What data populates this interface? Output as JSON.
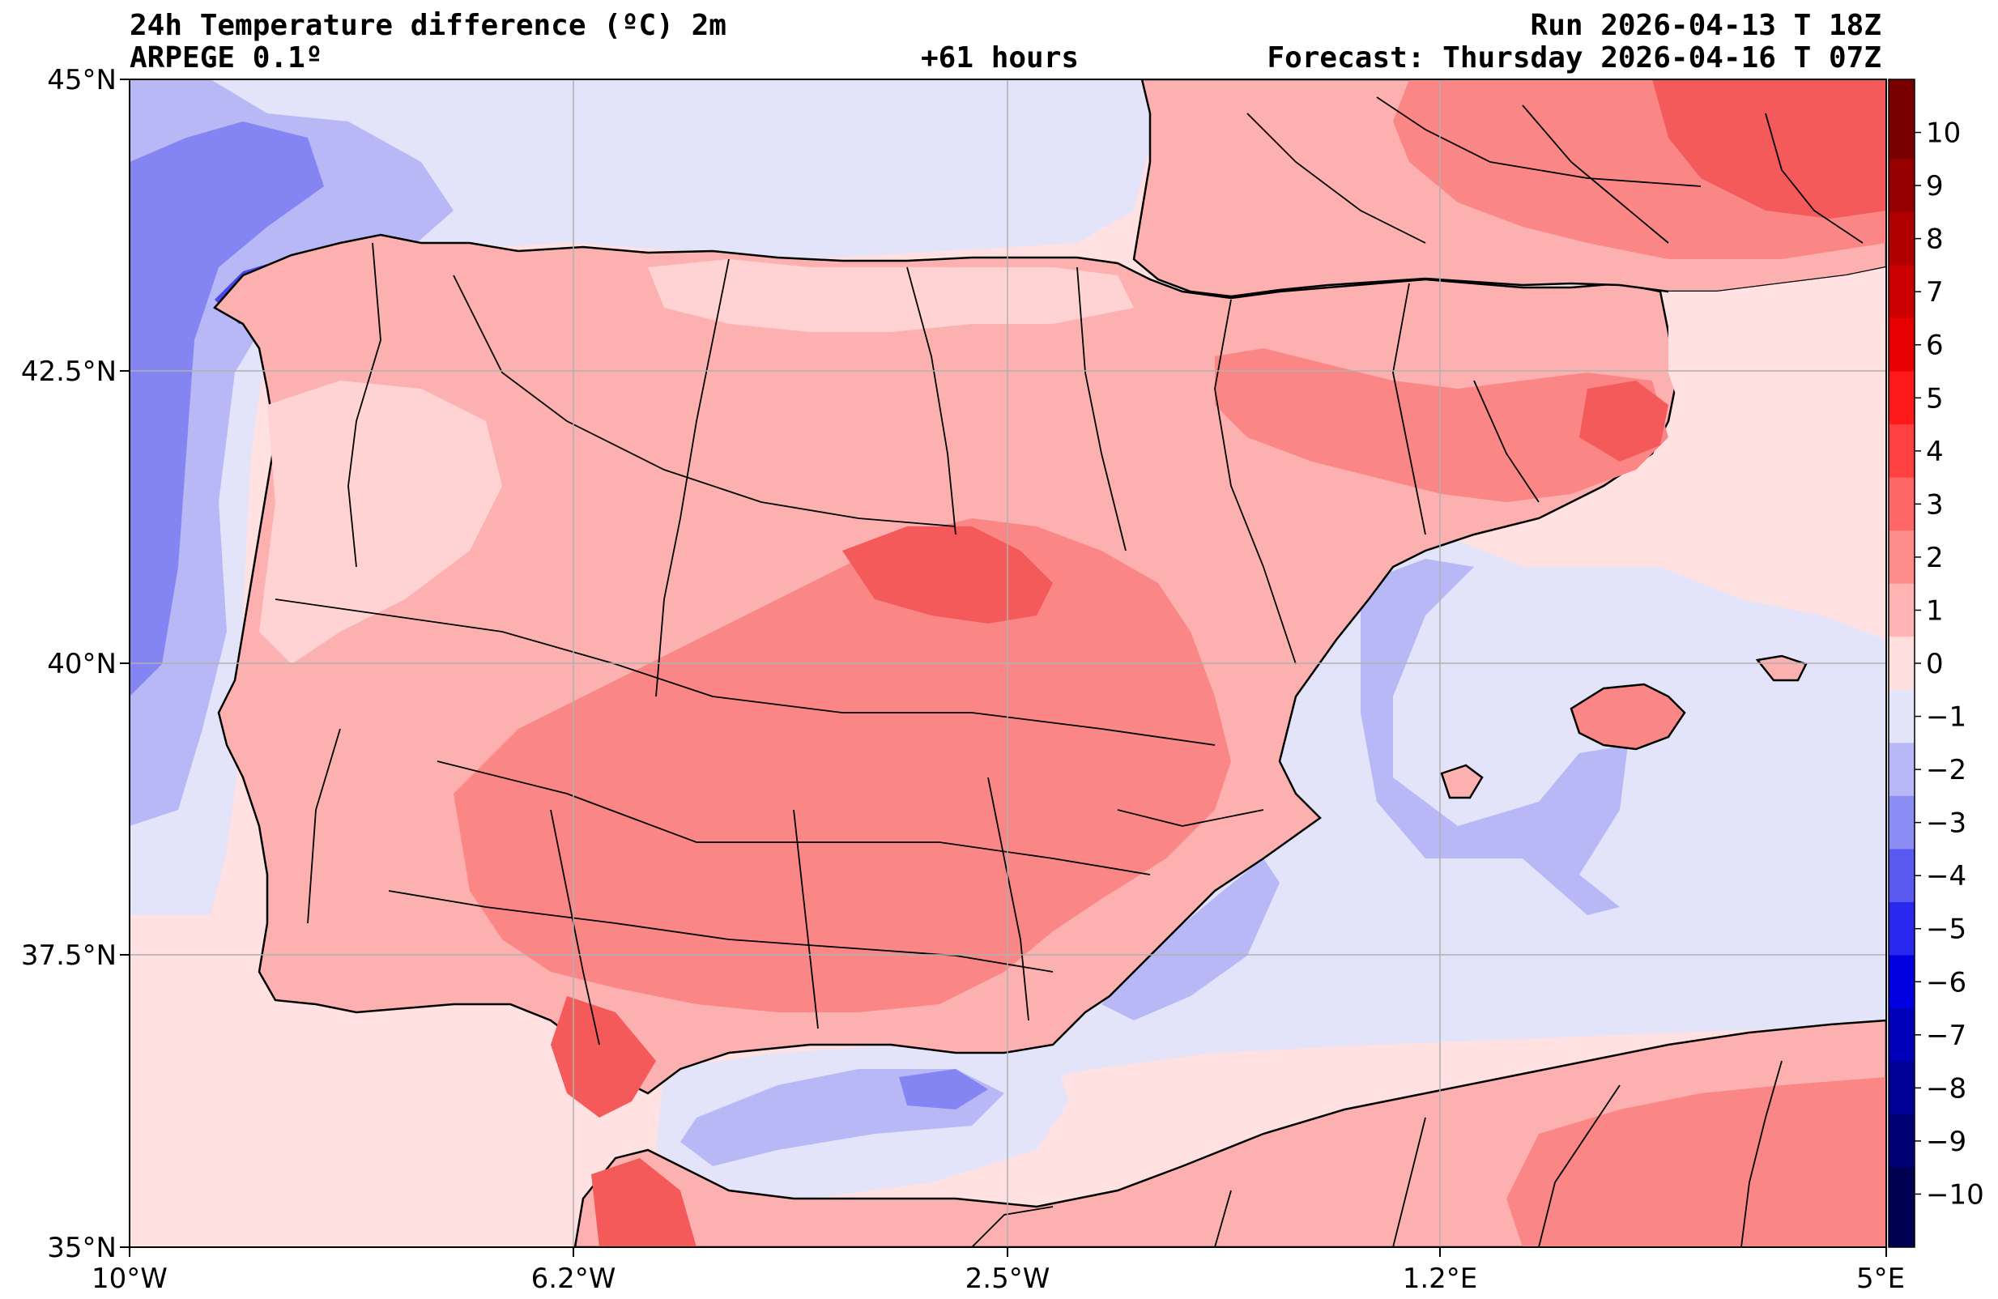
{
  "header": {
    "title": "24h Temperature difference (ºC) 2m",
    "model": "ARPEGE 0.1º",
    "lead_time": "+61 hours",
    "run": "Run 2026-04-13 T 18Z",
    "forecast": "Forecast: Thursday 2026-04-16 T 07Z"
  },
  "axes": {
    "lat_labels": [
      "45°N",
      "42.5°N",
      "40°N",
      "37.5°N",
      "35°N"
    ],
    "lon_labels": [
      "10°W",
      "6.2°W",
      "2.5°W",
      "1.2°E",
      "5°E"
    ]
  },
  "colorbar": {
    "levels": [
      "10",
      "9",
      "8",
      "7",
      "6",
      "5",
      "4",
      "3",
      "2",
      "1",
      "0",
      "−1",
      "−2",
      "−3",
      "−4",
      "−5",
      "−6",
      "−7",
      "−8",
      "−9",
      "−10"
    ],
    "colors": [
      "#7a0000",
      "#960000",
      "#b00000",
      "#cc0000",
      "#e60000",
      "#ff1a1a",
      "#ff4040",
      "#ff6666",
      "#fd8d8d",
      "#ffb3b3",
      "#ffdede",
      "#e4e4fb",
      "#b8b8f8",
      "#8c8cf5",
      "#5a5af2",
      "#2828ef",
      "#0000e0",
      "#0000b8",
      "#000096",
      "#000074",
      "#000052"
    ]
  },
  "map_colors": {
    "sea_base": "#ffe1e1",
    "sea_cool": "#e3e3fa",
    "cool_1": "#b8b8f6",
    "cool_2": "#8484f2",
    "cool_3": "#4848ee",
    "land_base": "#fdb0b0",
    "land_warm": "#fa8686",
    "land_hot": "#f45a5a",
    "land_mild": "#ffd3d3",
    "coast": "#000000",
    "grid": "#b0b0b0"
  }
}
